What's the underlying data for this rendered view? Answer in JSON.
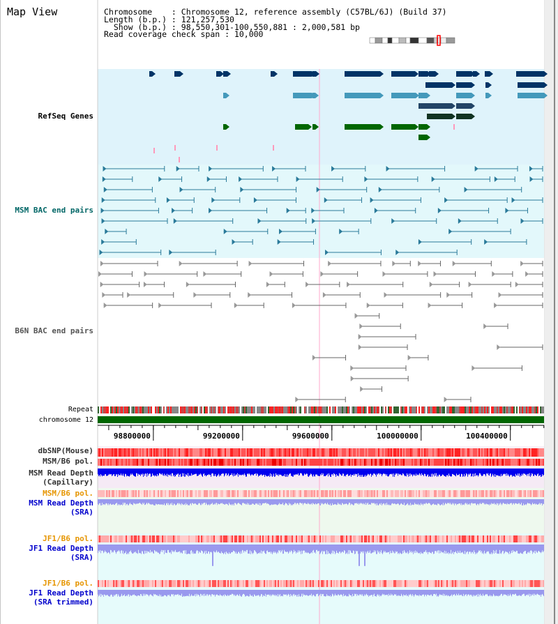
{
  "page": {
    "title": "Map View"
  },
  "info": {
    "chromosome": "Chromosome    : Chromosome 12, reference assembly (C57BL/6J) (Build 37)",
    "length": "Length (b.p.) : 121,257,530",
    "show": "  Show (b.p.) : 98,550,301-100,550,881 : 2,000,581 bp",
    "coverage": "Read coverage check span : 10,000"
  },
  "tracks": {
    "refseq": {
      "label": "RefSeq Genes",
      "color": "#000099"
    },
    "msm_bac": {
      "label": "MSM BAC end pairs",
      "color": "#006666"
    },
    "b6n_bac": {
      "label": "B6N BAC end pairs",
      "color": "#555555"
    },
    "repeat": {
      "label": "Repeat"
    },
    "chromosome": {
      "label": "chromosome 12"
    },
    "dbsnp": {
      "label": "dbSNP(Mouse)"
    },
    "msm_pol": {
      "label": "MSM/B6 pol."
    },
    "msm_depth_cap": {
      "label": "MSM Read Depth",
      "sub": "(Capillary)"
    },
    "msm_pol_sra": {
      "label": "MSM/B6 pol.",
      "color": "#e69500"
    },
    "msm_depth_sra": {
      "label": "MSM Read Depth",
      "sub": "(SRA)",
      "color": "#0000cc"
    },
    "jf1_pol": {
      "label": "JF1/B6 pol.",
      "color": "#e69500"
    },
    "jf1_depth": {
      "label": "JF1 Read Depth",
      "sub": "(SRA)",
      "color": "#0000cc"
    },
    "jf1_pol2": {
      "label": "JF1/B6 pol.",
      "color": "#e69500"
    },
    "jf1_depth2": {
      "label": "JF1 Read Depth",
      "sub": "(SRA trimmed)",
      "color": "#0000cc"
    }
  },
  "axis": {
    "range": [
      98550301,
      100550881
    ],
    "ticks": [
      "98800000",
      "99200000",
      "99600000",
      "100000000",
      "100400000"
    ],
    "tick_values": [
      98800000,
      99200000,
      99600000,
      100000000,
      100400000
    ]
  },
  "colors": {
    "refseq_bg": "#dff3fb",
    "msm_bg": "#e3f8fb",
    "gene_navy": "#003366",
    "gene_mid": "#4499bb",
    "gene_green": "#006600",
    "msm_feature": "#2a7a9a",
    "b6n_feature": "#666666",
    "chromosome_bar": "#006600",
    "snp": "#ff5555",
    "depth_capillary": "#0000ee",
    "depth_sra": "#9999ee",
    "selection_line": "#ffaacc"
  }
}
